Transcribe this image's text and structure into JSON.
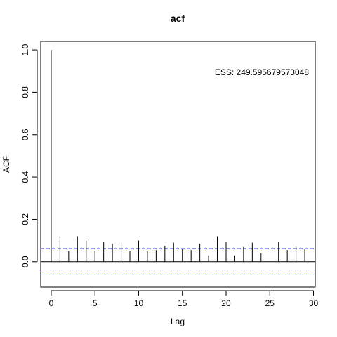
{
  "chart_data": {
    "type": "bar",
    "title": "acf",
    "xlabel": "Lag",
    "ylabel": "ACF",
    "annotation": "ESS: 249.595679573048",
    "xlim": [
      -1.2,
      30.2
    ],
    "ylim": [
      -0.12,
      1.04
    ],
    "x_ticks": [
      0,
      5,
      10,
      15,
      20,
      25,
      30
    ],
    "y_ticks": [
      0.0,
      0.2,
      0.4,
      0.6,
      0.8,
      1.0
    ],
    "x_tick_labels": [
      "0",
      "5",
      "10",
      "15",
      "20",
      "25",
      "30"
    ],
    "y_tick_labels": [
      "0.0",
      "0.2",
      "0.4",
      "0.6",
      "0.8",
      "1.0"
    ],
    "lags": [
      0,
      1,
      2,
      3,
      4,
      5,
      6,
      7,
      8,
      9,
      10,
      11,
      12,
      13,
      14,
      15,
      16,
      17,
      18,
      19,
      20,
      21,
      22,
      23,
      24,
      25,
      26,
      27,
      28,
      29
    ],
    "values": [
      1.0,
      0.12,
      0.05,
      0.12,
      0.1,
      0.05,
      0.095,
      0.085,
      0.09,
      0.05,
      0.1,
      0.05,
      0.055,
      0.075,
      0.09,
      0.06,
      0.055,
      0.085,
      0.03,
      0.12,
      0.095,
      0.03,
      0.07,
      0.09,
      0.04,
      0.0,
      0.095,
      0.055,
      0.07,
      0.06
    ],
    "confidence_band": [
      0.062,
      -0.062
    ],
    "band_color": "#0000cc",
    "line_color": "#000000",
    "grid": false
  }
}
